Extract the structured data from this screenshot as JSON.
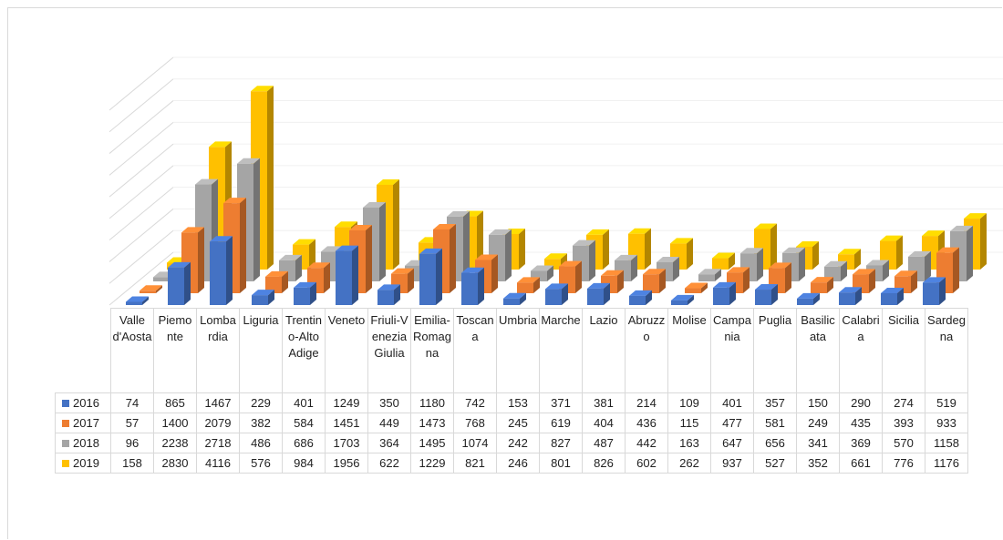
{
  "chart_data": {
    "type": "bar3d",
    "categories": [
      "Valle d'Aosta",
      "Piemonte",
      "Lombardia",
      "Liguria",
      "Trentino-Alto Adige",
      "Veneto",
      "Friuli-Venezia Giulia",
      "Emilia-Romagna",
      "Toscana",
      "Umbria",
      "Marche",
      "Lazio",
      "Abruzzo",
      "Molise",
      "Campania",
      "Puglia",
      "Basilicata",
      "Calabria",
      "Sicilia",
      "Sardegna"
    ],
    "series": [
      {
        "name": "2016",
        "color": "#4472c4",
        "values": [
          74,
          865,
          1467,
          229,
          401,
          1249,
          350,
          1180,
          742,
          153,
          371,
          381,
          214,
          109,
          401,
          357,
          150,
          290,
          274,
          519
        ]
      },
      {
        "name": "2017",
        "color": "#ed7d31",
        "values": [
          57,
          1400,
          2079,
          382,
          584,
          1451,
          449,
          1473,
          768,
          245,
          619,
          404,
          436,
          115,
          477,
          581,
          249,
          435,
          393,
          933
        ]
      },
      {
        "name": "2018",
        "color": "#a5a5a5",
        "values": [
          96,
          2238,
          2718,
          486,
          686,
          1703,
          364,
          1495,
          1074,
          242,
          827,
          487,
          442,
          163,
          647,
          656,
          341,
          369,
          570,
          1158
        ]
      },
      {
        "name": "2019",
        "color": "#ffc000",
        "values": [
          158,
          2830,
          4116,
          576,
          984,
          1956,
          622,
          1229,
          821,
          246,
          801,
          826,
          602,
          262,
          937,
          527,
          352,
          661,
          776,
          1176
        ]
      }
    ],
    "ylim": [
      0,
      4500
    ],
    "yticks": [
      0,
      500,
      1000,
      1500,
      2000,
      2500,
      3000,
      3500,
      4000,
      4500
    ],
    "grid": true
  }
}
